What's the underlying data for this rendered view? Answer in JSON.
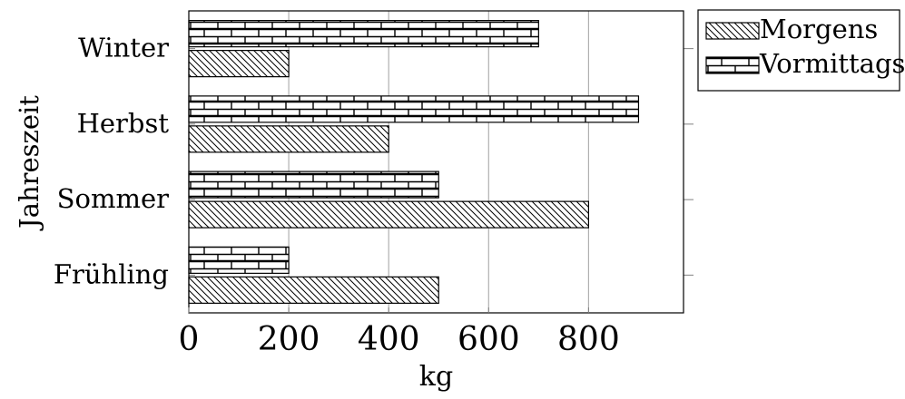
{
  "chart_data": {
    "type": "bar",
    "orientation": "horizontal",
    "categories": [
      "Frühling",
      "Sommer",
      "Herbst",
      "Winter"
    ],
    "series": [
      {
        "name": "Morgens",
        "values": [
          500,
          800,
          400,
          200
        ],
        "pattern": "diagonal-hatch"
      },
      {
        "name": "Vormittags",
        "values": [
          200,
          500,
          900,
          700
        ],
        "pattern": "bricks"
      }
    ],
    "xlabel": "kg",
    "ylabel": "Jahreszeit",
    "xticks": [
      0,
      200,
      400,
      600,
      800
    ],
    "xtick_labels": [
      "0",
      "200",
      "400",
      "600",
      "800"
    ],
    "xlim": [
      0,
      990
    ],
    "grid": "vertical",
    "legend_position": "outside-top-right"
  }
}
